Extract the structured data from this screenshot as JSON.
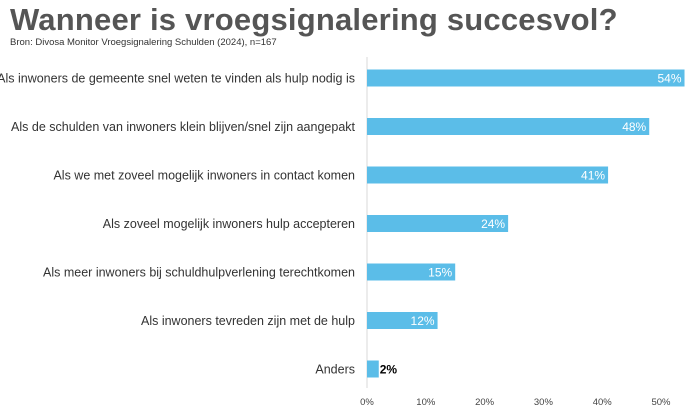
{
  "title": "Wanneer is vroegsignalering succesvol?",
  "subtitle": "Bron: Divosa Monitor Vroegsignalering Schulden (2024), n=167",
  "colors": {
    "bar": "#5bbde8",
    "label_inside": "#ffffff",
    "label_outside": "#000000",
    "axis": "#d9d9d9"
  },
  "chart_data": {
    "type": "bar",
    "orientation": "horizontal",
    "categories": [
      "Als inwoners de gemeente snel weten te vinden als hulp nodig is",
      "Als de schulden van inwoners klein blijven/snel zijn aangepakt",
      "Als we met zoveel mogelijk inwoners in contact komen",
      "Als zoveel mogelijk inwoners hulp accepteren",
      "Als meer inwoners bij schuldhulpverlening terechtkomen",
      "Als inwoners tevreden zijn met de hulp",
      "Anders"
    ],
    "values": [
      54,
      48,
      41,
      24,
      15,
      12,
      2
    ],
    "data_labels": [
      "54%",
      "48%",
      "41%",
      "24%",
      "15%",
      "12%",
      "2%"
    ],
    "x_ticks": [
      "0%",
      "10%",
      "20%",
      "30%",
      "40%",
      "50%"
    ],
    "xlim": [
      0,
      54
    ],
    "grid": false,
    "legend": "none"
  }
}
